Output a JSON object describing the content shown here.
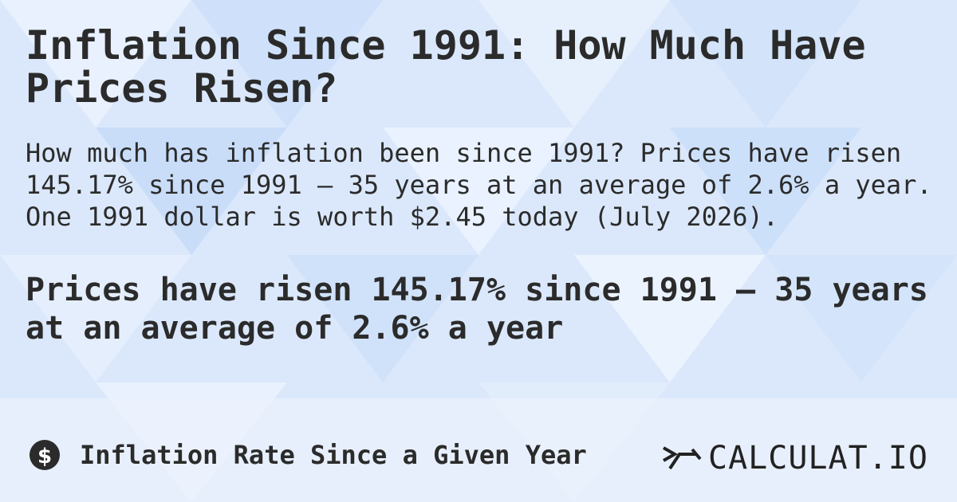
{
  "header": {
    "title": "Inflation Since 1991: How Much Have Prices Risen?"
  },
  "description": "How much has inflation been since 1991? Prices have risen 145.17% since 1991 — 35 years at an average of 2.6% a year. One 1991 dollar is worth $2.45 today (July 2026).",
  "highlight": "Prices have risen 145.17% since 1991 — 35 years at an average of 2.6% a year",
  "footer": {
    "label": "Inflation Rate Since a Given Year",
    "brand": "CALCULAT.IO"
  }
}
